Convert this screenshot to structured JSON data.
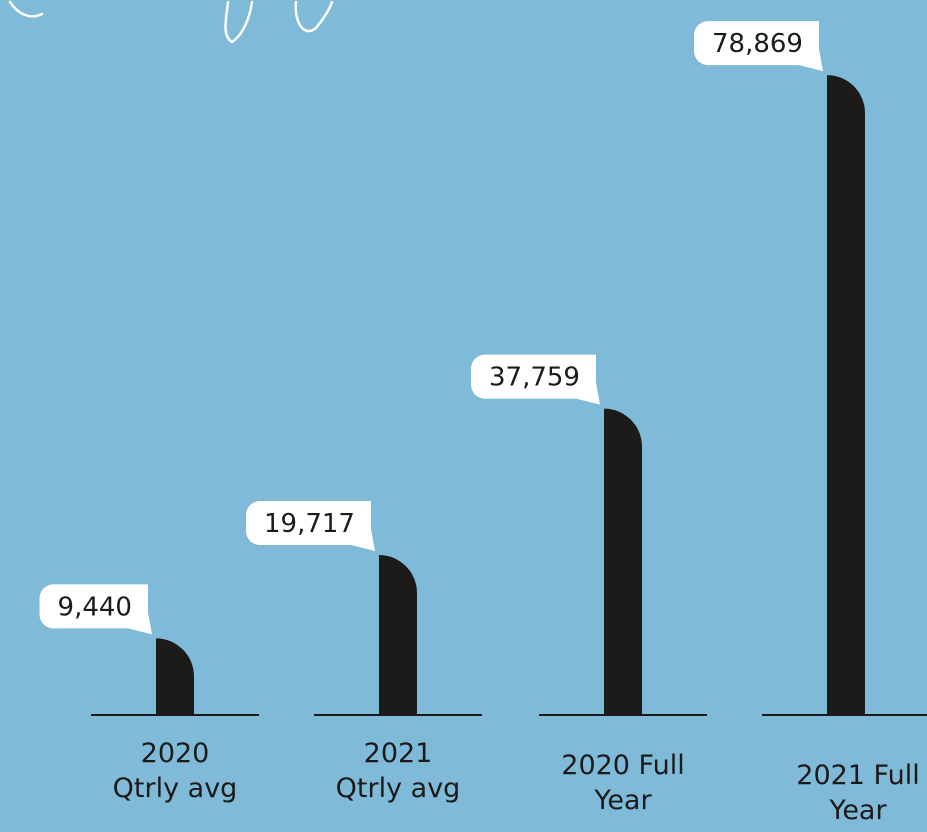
{
  "chart_data": {
    "type": "bar",
    "title": "",
    "xlabel": "",
    "ylabel": "",
    "categories": [
      [
        "2020",
        "Qtrly avg"
      ],
      [
        "2021",
        "Qtrly avg"
      ],
      [
        "2020 Full",
        "Year"
      ],
      [
        "2021 Full",
        "Year"
      ]
    ],
    "values": [
      9440,
      19717,
      37759,
      78869
    ],
    "value_labels": [
      "9,440",
      "19,717",
      "37,759",
      "78,869"
    ],
    "ylim": [
      0,
      80000
    ],
    "grid": false,
    "legend": "none"
  },
  "colors": {
    "background": "#7fbad8",
    "bar": "#1d1a1a",
    "callout": "#ffffff",
    "text": "#1d1a1a",
    "decoration": "#ffffff"
  }
}
